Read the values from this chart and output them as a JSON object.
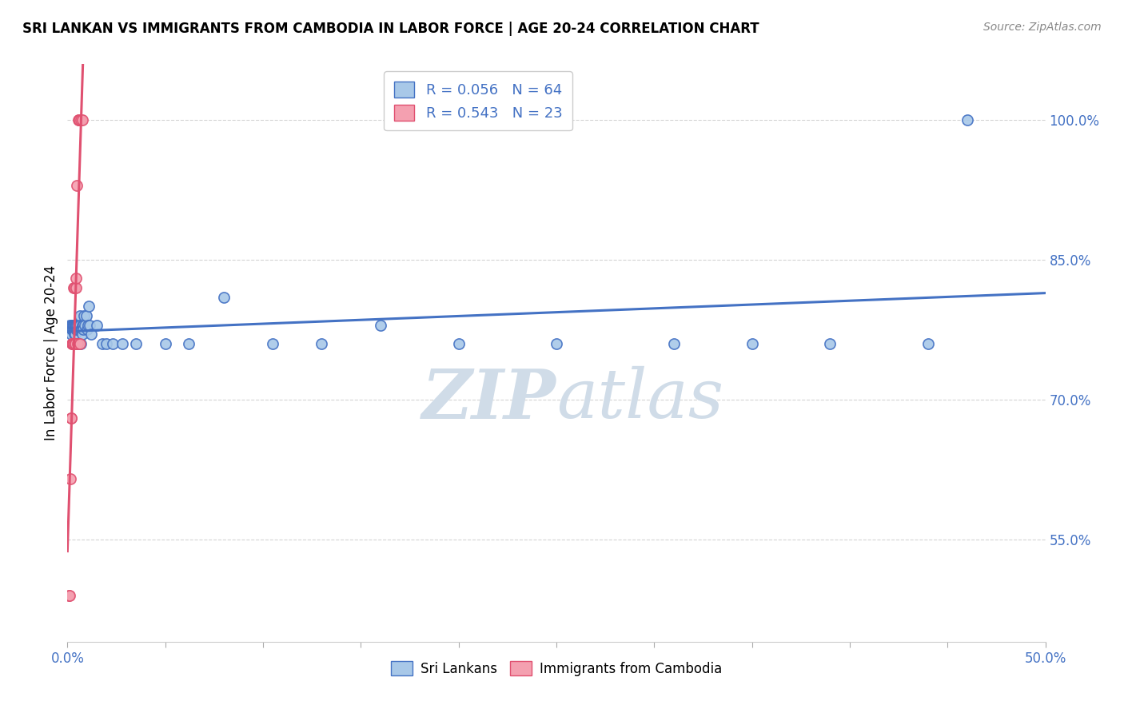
{
  "title": "SRI LANKAN VS IMMIGRANTS FROM CAMBODIA IN LABOR FORCE | AGE 20-24 CORRELATION CHART",
  "source": "Source: ZipAtlas.com",
  "ylabel": "In Labor Force | Age 20-24",
  "ytick_labels": [
    "100.0%",
    "85.0%",
    "70.0%",
    "55.0%"
  ],
  "ytick_vals": [
    1.0,
    0.85,
    0.7,
    0.55
  ],
  "xmin": 0.0,
  "xmax": 0.5,
  "ymin": 0.44,
  "ymax": 1.06,
  "sri_lankans_x": [
    0.001,
    0.0015,
    0.0018,
    0.002,
    0.0022,
    0.0023,
    0.0025,
    0.0027,
    0.0028,
    0.003,
    0.0032,
    0.0033,
    0.0035,
    0.0035,
    0.0037,
    0.0038,
    0.004,
    0.004,
    0.0042,
    0.0043,
    0.0045,
    0.0047,
    0.0048,
    0.005,
    0.0052,
    0.0055,
    0.0058,
    0.006,
    0.0062,
    0.0065,
    0.0068,
    0.007,
    0.0072,
    0.0075,
    0.0078,
    0.008,
    0.0082,
    0.0085,
    0.009,
    0.0095,
    0.01,
    0.0105,
    0.011,
    0.0115,
    0.012,
    0.015,
    0.018,
    0.02,
    0.023,
    0.028,
    0.035,
    0.05,
    0.062,
    0.08,
    0.105,
    0.13,
    0.16,
    0.2,
    0.25,
    0.31,
    0.35,
    0.39,
    0.44,
    0.46
  ],
  "sri_lankans_y": [
    0.78,
    0.775,
    0.77,
    0.78,
    0.775,
    0.78,
    0.775,
    0.78,
    0.775,
    0.78,
    0.775,
    0.78,
    0.77,
    0.775,
    0.78,
    0.775,
    0.77,
    0.78,
    0.775,
    0.78,
    0.78,
    0.775,
    0.78,
    0.775,
    0.78,
    0.76,
    0.775,
    0.78,
    0.79,
    0.78,
    0.775,
    0.76,
    0.775,
    0.78,
    0.77,
    0.78,
    0.775,
    0.79,
    0.78,
    0.79,
    0.775,
    0.78,
    0.8,
    0.78,
    0.77,
    0.78,
    0.76,
    0.76,
    0.76,
    0.76,
    0.76,
    0.76,
    0.76,
    0.81,
    0.76,
    0.76,
    0.78,
    0.76,
    0.76,
    0.76,
    0.76,
    0.76,
    0.76,
    1.0
  ],
  "cambodia_x": [
    0.0008,
    0.0012,
    0.0015,
    0.0018,
    0.002,
    0.0022,
    0.0025,
    0.0027,
    0.003,
    0.0032,
    0.0035,
    0.0038,
    0.004,
    0.0042,
    0.0045,
    0.0048,
    0.005,
    0.0055,
    0.0058,
    0.006,
    0.0065,
    0.007,
    0.0075
  ],
  "cambodia_y": [
    0.49,
    0.49,
    0.615,
    0.68,
    0.68,
    0.76,
    0.76,
    0.76,
    0.76,
    0.82,
    0.82,
    0.76,
    0.76,
    0.82,
    0.83,
    0.93,
    0.76,
    1.0,
    1.0,
    1.0,
    0.76,
    1.0,
    1.0
  ],
  "sri_R": 0.056,
  "sri_N": 64,
  "cam_R": 0.543,
  "cam_N": 23,
  "blue_fill": "#a8c8e8",
  "blue_edge": "#4472c4",
  "pink_fill": "#f4a0b0",
  "pink_edge": "#e05070",
  "blue_line": "#4472c4",
  "pink_line": "#e05070",
  "blue_text": "#4472c4",
  "watermark_color": "#d0dce8",
  "background_color": "#ffffff",
  "grid_color": "#d0d0d0"
}
